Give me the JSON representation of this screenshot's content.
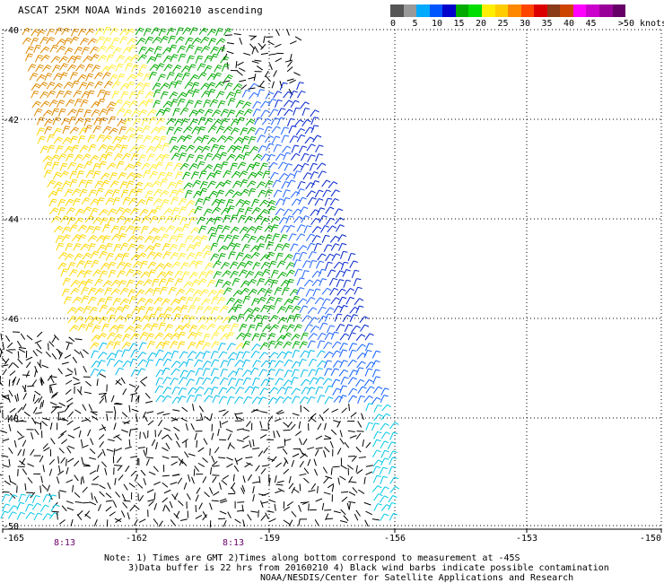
{
  "title": "ASCAT 25KM NOAA Winds 20160210 ascending",
  "colorbar": {
    "colors": [
      "#555555",
      "#999999",
      "#00aaff",
      "#0055ff",
      "#0000cc",
      "#00aa00",
      "#00dd00",
      "#ffee00",
      "#ffcc00",
      "#ff8800",
      "#ff4400",
      "#dd0000",
      "#8b3a1a",
      "#cc4400",
      "#ff00ff",
      "#cc00cc",
      "#990099",
      "#660066"
    ],
    "labels": [
      "0",
      "5",
      "10",
      "15",
      "20",
      "25",
      "30",
      "35",
      "40",
      "45",
      ">50 knots"
    ]
  },
  "axes": {
    "lon_labels": [
      "-165",
      "-162",
      "-159",
      "-156",
      "-153",
      "-150"
    ],
    "lat_labels": [
      "-40",
      "-42",
      "-44",
      "-46",
      "-48",
      "-50"
    ]
  },
  "time_labels": [
    "8:13",
    "8:13"
  ],
  "notes": [
    "Note: 1) Times are GMT 2)Times along bottom correspond to measurement at -45S",
    "3)Data buffer is 22 hrs from 20160210 4) Black wind barbs indicate possible contamination",
    "NOAA/NESDIS/Center for Satellite Applications and Research"
  ]
}
